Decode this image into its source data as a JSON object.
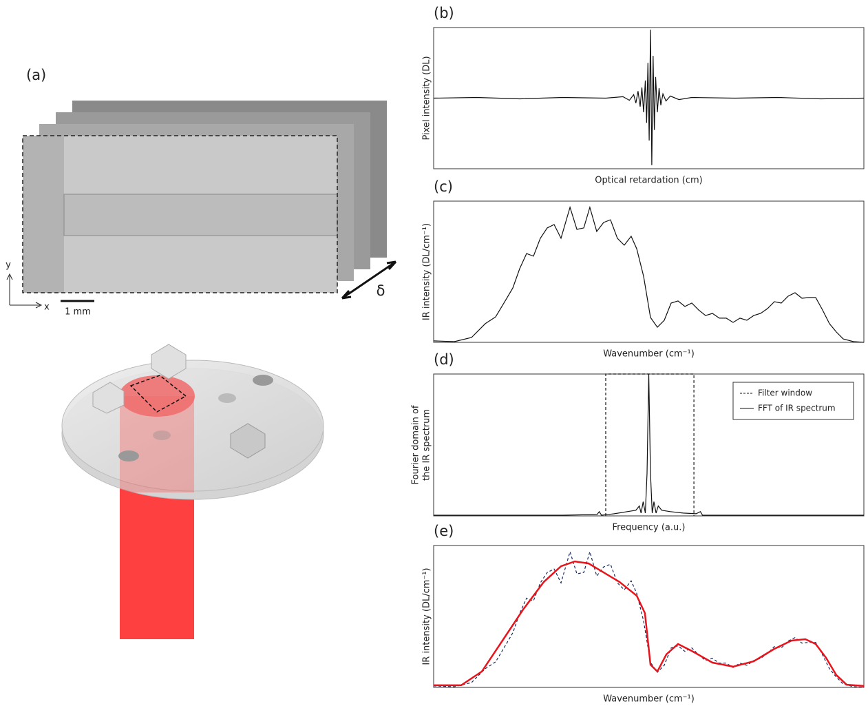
{
  "illustration": {
    "label": "(a)",
    "axis_y": "y",
    "axis_x": "x",
    "scale_bar": "1 mm",
    "stack_axis": "δ"
  },
  "chart_data": [
    {
      "type": "line",
      "panel_label": "(b)",
      "xlabel": "Optical retardation (cm)",
      "ylabel": [
        "Pixel intensity (DL)"
      ],
      "xlim": [
        0,
        100
      ],
      "ylim": [
        -1,
        1
      ],
      "series": [
        {
          "color": "#111111",
          "linestyle": "solid",
          "x": [
            0,
            10,
            20,
            30,
            40,
            44,
            45.5,
            46.5,
            47,
            47.5,
            48,
            48.4,
            48.8,
            49.2,
            49.5,
            49.8,
            50.1,
            50.4,
            50.7,
            51.0,
            51.3,
            51.6,
            52,
            52.4,
            52.8,
            53.3,
            54,
            55,
            57,
            60,
            70,
            80,
            90,
            100
          ],
          "values": [
            0,
            0.01,
            -0.01,
            0.01,
            0,
            0.02,
            -0.03,
            0.05,
            -0.07,
            0.1,
            -0.12,
            0.15,
            -0.2,
            0.25,
            -0.35,
            0.5,
            -0.6,
            0.97,
            -0.95,
            0.6,
            -0.45,
            0.3,
            -0.2,
            0.14,
            -0.1,
            0.06,
            -0.04,
            0.03,
            -0.02,
            0.01,
            0,
            0.01,
            -0.01,
            0
          ]
        }
      ]
    },
    {
      "type": "line",
      "panel_label": "(c)",
      "xlabel": "Wavenumber (cm⁻¹)",
      "ylabel": [
        "IR intensity (DL/cm⁻¹)"
      ],
      "xlim": [
        0,
        100
      ],
      "ylim": [
        0,
        100
      ],
      "series": [
        {
          "color": "#111111",
          "linestyle": "solid",
          "x": [
            0,
            4.8,
            8.8,
            12,
            14.4,
            16.8,
            18.4,
            20,
            21.6,
            23.2,
            24.8,
            26.4,
            28,
            29.6,
            31.7,
            33.3,
            34.9,
            36.3,
            37.9,
            39.5,
            41.1,
            42.7,
            44.3,
            45.9,
            47.2,
            48.8,
            50.4,
            52,
            53.6,
            55.2,
            56.8,
            58.4,
            60,
            61.6,
            63.2,
            64.8,
            66.4,
            68,
            69.6,
            71.2,
            72.8,
            74.4,
            76,
            77.6,
            79.2,
            80.8,
            82.4,
            84,
            85.6,
            87.2,
            88.8,
            90.4,
            92,
            93.6,
            95.2,
            97.6,
            100
          ],
          "values": [
            1,
            0.5,
            3.4,
            13.2,
            18,
            30.2,
            38.5,
            52.2,
            62.9,
            61,
            73.7,
            81,
            83.4,
            73.7,
            95.6,
            80,
            81,
            95.6,
            78.5,
            84.9,
            86.8,
            73.7,
            68.8,
            75.1,
            66.3,
            46.8,
            17.6,
            10.7,
            15.6,
            27.8,
            29.3,
            25.4,
            27.8,
            22.9,
            19,
            20.5,
            17.1,
            17.1,
            14.1,
            17.1,
            15.6,
            19,
            20.5,
            23.9,
            28.8,
            27.8,
            32.7,
            35.1,
            31.2,
            31.7,
            31.7,
            22.9,
            13.2,
            7.3,
            2.4,
            0.5,
            0
          ]
        }
      ]
    },
    {
      "type": "line",
      "panel_label": "(d)",
      "xlabel": "Frequency (a.u.)",
      "ylabel": [
        "Fourier domain of",
        "the IR spectrum"
      ],
      "xlim": [
        0,
        100
      ],
      "ylim": [
        0,
        100
      ],
      "legend": "upper right",
      "series": [
        {
          "name": "Filter window",
          "color": "#111111",
          "linestyle": "dashed",
          "x": [
            40,
            40,
            60.5,
            60.5
          ],
          "values": [
            0,
            100,
            100,
            0
          ]
        },
        {
          "name": "FFT of IR spectrum",
          "color": "#111111",
          "linestyle": "solid",
          "x": [
            0,
            30,
            38,
            38.5,
            39,
            42,
            45,
            47,
            47.8,
            48.2,
            48.7,
            49.2,
            49.6,
            50,
            50.4,
            50.8,
            51.2,
            51.7,
            52.2,
            53,
            55,
            58,
            61,
            62,
            62.5,
            70,
            100
          ],
          "values": [
            0.5,
            0.5,
            1,
            3,
            0.5,
            1.5,
            3,
            4,
            7,
            2,
            10,
            2,
            30,
            100,
            30,
            2,
            10,
            2,
            7,
            4,
            3,
            2,
            1.5,
            3,
            0.5,
            0.5,
            0.5
          ]
        }
      ]
    },
    {
      "type": "line",
      "panel_label": "(e)",
      "xlabel": "Wavenumber (cm⁻¹)",
      "ylabel": [
        "IR intensity (DL/cm⁻¹)"
      ],
      "xlim": [
        0,
        100
      ],
      "ylim": [
        0,
        100
      ],
      "series": [
        {
          "color": "#1a2a5a",
          "linestyle": "dashed",
          "x": [
            0,
            4.8,
            8.8,
            12,
            14.4,
            16.8,
            18.4,
            20,
            21.6,
            23.2,
            24.8,
            26.4,
            28,
            29.6,
            31.7,
            33.3,
            34.9,
            36.3,
            37.9,
            39.5,
            41.1,
            42.7,
            44.3,
            45.9,
            47.2,
            48.8,
            50.4,
            52,
            53.6,
            55.2,
            56.8,
            58.4,
            60,
            61.6,
            63.2,
            64.8,
            66.4,
            68,
            69.6,
            71.2,
            72.8,
            74.4,
            76,
            77.6,
            79.2,
            80.8,
            82.4,
            84,
            85.6,
            87.2,
            88.8,
            90.4,
            92,
            93.6,
            95.2,
            97.6,
            100
          ],
          "values": [
            1,
            0.5,
            3.4,
            13.2,
            18,
            30.2,
            38.5,
            52.2,
            62.9,
            61,
            73.7,
            81,
            83.4,
            73.7,
            95.6,
            80,
            81,
            95.6,
            78.5,
            84.9,
            86.8,
            73.7,
            68.8,
            75.1,
            66.3,
            46.8,
            17.6,
            10.7,
            15.6,
            27.8,
            29.3,
            25.4,
            27.8,
            22.9,
            19,
            20.5,
            17.1,
            17.1,
            14.1,
            17.1,
            15.6,
            19,
            20.5,
            23.9,
            28.8,
            27.8,
            32.7,
            35.1,
            31.2,
            31.7,
            31.7,
            22.9,
            13.2,
            7.3,
            2.4,
            0.5,
            0
          ]
        },
        {
          "color": "#e8141c",
          "linestyle": "solid",
          "x": [
            0,
            6.4,
            11.2,
            16,
            20.8,
            25.6,
            29.6,
            32.8,
            36,
            39.2,
            43.2,
            47.2,
            49.1,
            50.4,
            52,
            54.1,
            56.8,
            60,
            64.8,
            69.6,
            74.4,
            79.2,
            83.2,
            86.4,
            88.8,
            91.2,
            93.6,
            96,
            100
          ],
          "values": [
            1.5,
            1.5,
            11.2,
            33,
            54.9,
            74.3,
            85.4,
            88.8,
            87.4,
            81.6,
            74.3,
            64.6,
            52.4,
            16,
            11.2,
            23.3,
            30.6,
            25.7,
            17.5,
            14.6,
            18.4,
            27.2,
            33,
            34,
            30.6,
            20.9,
            8.7,
            1.9,
            1
          ]
        }
      ]
    }
  ]
}
